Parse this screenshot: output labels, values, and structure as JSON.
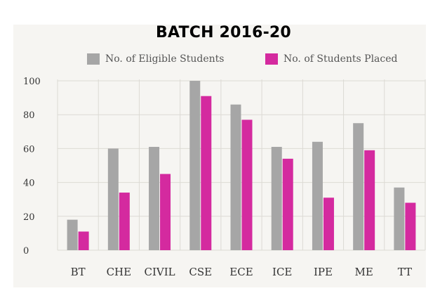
{
  "chart_data": {
    "type": "bar",
    "title": "BATCH 2016-20",
    "categories": [
      "BT",
      "CHE",
      "CIVIL",
      "CSE",
      "ECE",
      "ICE",
      "IPE",
      "ME",
      "TT"
    ],
    "series": [
      {
        "name": "No. of Eligible Students",
        "color": "#a6a6a6",
        "values": [
          18,
          60,
          61,
          100,
          86,
          61,
          64,
          75,
          37
        ]
      },
      {
        "name": "No. of Students Placed",
        "color": "#d42a9f",
        "values": [
          11,
          34,
          45,
          91,
          77,
          54,
          31,
          59,
          28
        ]
      }
    ],
    "yticks": [
      "0",
      "20",
      "40",
      "60",
      "80",
      "100"
    ],
    "ylim": [
      0,
      100
    ],
    "grid": true,
    "legend": "top"
  }
}
